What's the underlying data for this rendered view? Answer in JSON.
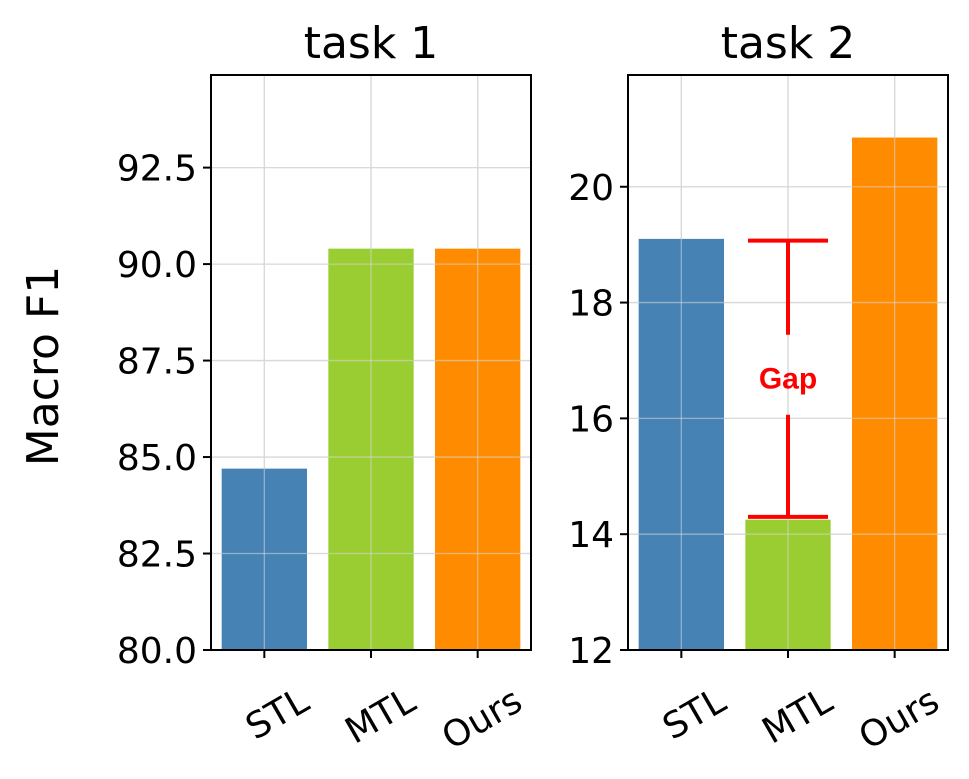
{
  "ylabel": "Macro F1",
  "chart_data": [
    {
      "type": "bar",
      "title": "task 1",
      "categories": [
        "STL",
        "MTL",
        "Ours"
      ],
      "values": [
        84.7,
        90.4,
        90.4
      ],
      "colors": [
        "#4682b4",
        "#9acd32",
        "#ff8c00"
      ],
      "ylim": [
        80.0,
        94.9
      ],
      "yticks": [
        "80.0",
        "82.5",
        "85.0",
        "87.5",
        "90.0",
        "92.5"
      ],
      "ytick_values": [
        80.0,
        82.5,
        85.0,
        87.5,
        90.0,
        92.5
      ],
      "grid": true
    },
    {
      "type": "bar",
      "title": "task 2",
      "categories": [
        "STL",
        "MTL",
        "Ours"
      ],
      "values": [
        19.1,
        14.25,
        20.85
      ],
      "colors": [
        "#4682b4",
        "#9acd32",
        "#ff8c00"
      ],
      "ylim": [
        12.0,
        21.93
      ],
      "yticks": [
        "12",
        "14",
        "16",
        "18",
        "20"
      ],
      "ytick_values": [
        12,
        14,
        16,
        18,
        20
      ],
      "grid": true,
      "annotation": {
        "label": "Gap",
        "category": "MTL",
        "from": 14.3,
        "to": 19.07,
        "color": "#ff0000"
      }
    }
  ]
}
